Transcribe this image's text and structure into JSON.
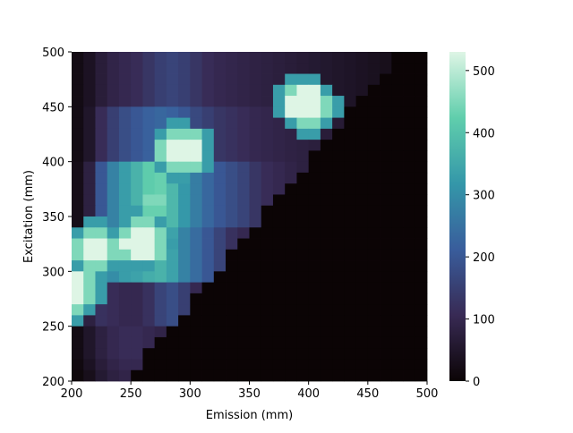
{
  "chart_data": {
    "type": "heatmap",
    "xlabel": "Emission (mm)",
    "ylabel": "Excitation (mm)",
    "xlim": [
      200,
      500
    ],
    "ylim": [
      200,
      500
    ],
    "xticks": [
      200,
      250,
      300,
      350,
      400,
      450,
      500
    ],
    "yticks": [
      200,
      250,
      300,
      350,
      400,
      450,
      500
    ],
    "x": [
      205,
      215,
      225,
      235,
      245,
      255,
      265,
      275,
      285,
      295,
      305,
      315,
      325,
      335,
      345,
      355,
      365,
      375,
      385,
      395,
      405,
      415,
      425,
      435,
      445,
      455,
      465,
      475,
      485,
      495
    ],
    "y": [
      495,
      485,
      475,
      465,
      455,
      445,
      435,
      425,
      415,
      405,
      395,
      385,
      375,
      365,
      355,
      345,
      335,
      325,
      315,
      305,
      295,
      285,
      275,
      265,
      255,
      245,
      235,
      225,
      215,
      205
    ],
    "z": [
      [
        20,
        40,
        70,
        90,
        100,
        110,
        130,
        150,
        160,
        150,
        130,
        110,
        100,
        95,
        90,
        85,
        80,
        75,
        70,
        65,
        60,
        55,
        50,
        45,
        40,
        35,
        30,
        0,
        0,
        0
      ],
      [
        20,
        40,
        70,
        90,
        100,
        110,
        130,
        150,
        160,
        150,
        130,
        110,
        100,
        95,
        90,
        85,
        80,
        75,
        70,
        65,
        60,
        55,
        50,
        45,
        40,
        35,
        30,
        0,
        0,
        0
      ],
      [
        20,
        40,
        70,
        90,
        100,
        110,
        130,
        150,
        160,
        150,
        130,
        110,
        100,
        95,
        90,
        85,
        80,
        75,
        330,
        330,
        330,
        55,
        50,
        45,
        40,
        35,
        0,
        0,
        0,
        0
      ],
      [
        20,
        40,
        70,
        90,
        100,
        110,
        130,
        150,
        160,
        150,
        130,
        110,
        100,
        95,
        90,
        85,
        80,
        330,
        450,
        530,
        530,
        330,
        50,
        45,
        40,
        0,
        0,
        0,
        0,
        0
      ],
      [
        20,
        40,
        70,
        90,
        100,
        110,
        130,
        150,
        160,
        150,
        130,
        110,
        100,
        95,
        90,
        85,
        80,
        330,
        530,
        530,
        530,
        450,
        330,
        45,
        0,
        0,
        0,
        0,
        0,
        0
      ],
      [
        20,
        50,
        110,
        150,
        180,
        200,
        220,
        230,
        220,
        200,
        170,
        150,
        130,
        120,
        110,
        100,
        95,
        330,
        530,
        530,
        530,
        450,
        330,
        0,
        0,
        0,
        0,
        0,
        0,
        0
      ],
      [
        20,
        50,
        110,
        150,
        180,
        200,
        220,
        230,
        330,
        330,
        170,
        150,
        130,
        120,
        110,
        100,
        95,
        90,
        330,
        450,
        450,
        330,
        65,
        0,
        0,
        0,
        0,
        0,
        0,
        0
      ],
      [
        20,
        50,
        110,
        150,
        180,
        200,
        220,
        330,
        450,
        450,
        450,
        330,
        130,
        120,
        110,
        100,
        95,
        90,
        85,
        330,
        330,
        70,
        0,
        0,
        0,
        0,
        0,
        0,
        0,
        0
      ],
      [
        20,
        50,
        110,
        150,
        180,
        200,
        220,
        450,
        530,
        530,
        530,
        330,
        130,
        120,
        110,
        100,
        95,
        90,
        85,
        80,
        75,
        0,
        0,
        0,
        0,
        0,
        0,
        0,
        0,
        0
      ],
      [
        20,
        50,
        110,
        150,
        180,
        200,
        220,
        450,
        530,
        530,
        530,
        330,
        130,
        120,
        110,
        100,
        95,
        90,
        85,
        80,
        0,
        0,
        0,
        0,
        0,
        0,
        0,
        0,
        0,
        0
      ],
      [
        25,
        80,
        200,
        280,
        330,
        370,
        420,
        330,
        450,
        450,
        450,
        330,
        200,
        180,
        160,
        130,
        110,
        100,
        90,
        80,
        0,
        0,
        0,
        0,
        0,
        0,
        0,
        0,
        0,
        0
      ],
      [
        25,
        80,
        200,
        280,
        330,
        370,
        420,
        430,
        330,
        330,
        270,
        230,
        200,
        180,
        160,
        130,
        110,
        100,
        90,
        0,
        0,
        0,
        0,
        0,
        0,
        0,
        0,
        0,
        0,
        0
      ],
      [
        25,
        80,
        200,
        280,
        330,
        370,
        420,
        430,
        380,
        320,
        270,
        230,
        200,
        180,
        160,
        130,
        110,
        100,
        0,
        0,
        0,
        0,
        0,
        0,
        0,
        0,
        0,
        0,
        0,
        0
      ],
      [
        25,
        80,
        200,
        280,
        330,
        370,
        450,
        450,
        380,
        320,
        270,
        230,
        200,
        180,
        160,
        130,
        110,
        0,
        0,
        0,
        0,
        0,
        0,
        0,
        0,
        0,
        0,
        0,
        0,
        0
      ],
      [
        25,
        80,
        200,
        280,
        330,
        330,
        430,
        430,
        380,
        320,
        270,
        230,
        200,
        180,
        160,
        130,
        0,
        0,
        0,
        0,
        0,
        0,
        0,
        0,
        0,
        0,
        0,
        0,
        0,
        0
      ],
      [
        25,
        330,
        330,
        280,
        330,
        450,
        450,
        330,
        380,
        320,
        270,
        230,
        200,
        180,
        160,
        130,
        0,
        0,
        0,
        0,
        0,
        0,
        0,
        0,
        0,
        0,
        0,
        0,
        0,
        0
      ],
      [
        330,
        450,
        450,
        330,
        450,
        530,
        530,
        450,
        340,
        280,
        240,
        200,
        160,
        120,
        100,
        0,
        0,
        0,
        0,
        0,
        0,
        0,
        0,
        0,
        0,
        0,
        0,
        0,
        0,
        0
      ],
      [
        450,
        530,
        530,
        450,
        530,
        530,
        530,
        450,
        330,
        280,
        240,
        200,
        160,
        120,
        0,
        0,
        0,
        0,
        0,
        0,
        0,
        0,
        0,
        0,
        0,
        0,
        0,
        0,
        0,
        0
      ],
      [
        450,
        530,
        530,
        450,
        450,
        530,
        530,
        450,
        340,
        280,
        240,
        200,
        160,
        0,
        0,
        0,
        0,
        0,
        0,
        0,
        0,
        0,
        0,
        0,
        0,
        0,
        0,
        0,
        0,
        0
      ],
      [
        330,
        450,
        450,
        330,
        330,
        330,
        330,
        370,
        340,
        280,
        240,
        200,
        160,
        0,
        0,
        0,
        0,
        0,
        0,
        0,
        0,
        0,
        0,
        0,
        0,
        0,
        0,
        0,
        0,
        0
      ],
      [
        530,
        450,
        330,
        300,
        330,
        340,
        360,
        370,
        340,
        280,
        240,
        200,
        0,
        0,
        0,
        0,
        0,
        0,
        0,
        0,
        0,
        0,
        0,
        0,
        0,
        0,
        0,
        0,
        0,
        0
      ],
      [
        530,
        450,
        330,
        110,
        100,
        100,
        120,
        160,
        180,
        150,
        100,
        0,
        0,
        0,
        0,
        0,
        0,
        0,
        0,
        0,
        0,
        0,
        0,
        0,
        0,
        0,
        0,
        0,
        0,
        0
      ],
      [
        530,
        450,
        330,
        110,
        100,
        100,
        120,
        160,
        180,
        150,
        0,
        0,
        0,
        0,
        0,
        0,
        0,
        0,
        0,
        0,
        0,
        0,
        0,
        0,
        0,
        0,
        0,
        0,
        0,
        0
      ],
      [
        450,
        330,
        120,
        110,
        100,
        100,
        120,
        160,
        180,
        150,
        0,
        0,
        0,
        0,
        0,
        0,
        0,
        0,
        0,
        0,
        0,
        0,
        0,
        0,
        0,
        0,
        0,
        0,
        0,
        0
      ],
      [
        330,
        80,
        120,
        110,
        100,
        100,
        120,
        160,
        180,
        0,
        0,
        0,
        0,
        0,
        0,
        0,
        0,
        0,
        0,
        0,
        0,
        0,
        0,
        0,
        0,
        0,
        0,
        0,
        0,
        0
      ],
      [
        20,
        50,
        80,
        100,
        110,
        110,
        100,
        90,
        0,
        0,
        0,
        0,
        0,
        0,
        0,
        0,
        0,
        0,
        0,
        0,
        0,
        0,
        0,
        0,
        0,
        0,
        0,
        0,
        0,
        0
      ],
      [
        20,
        50,
        80,
        100,
        110,
        110,
        100,
        0,
        0,
        0,
        0,
        0,
        0,
        0,
        0,
        0,
        0,
        0,
        0,
        0,
        0,
        0,
        0,
        0,
        0,
        0,
        0,
        0,
        0,
        0
      ],
      [
        20,
        50,
        80,
        100,
        110,
        110,
        0,
        0,
        0,
        0,
        0,
        0,
        0,
        0,
        0,
        0,
        0,
        0,
        0,
        0,
        0,
        0,
        0,
        0,
        0,
        0,
        0,
        0,
        0,
        0
      ],
      [
        15,
        40,
        70,
        90,
        100,
        100,
        0,
        0,
        0,
        0,
        0,
        0,
        0,
        0,
        0,
        0,
        0,
        0,
        0,
        0,
        0,
        0,
        0,
        0,
        0,
        0,
        0,
        0,
        0,
        0
      ],
      [
        10,
        30,
        60,
        80,
        90,
        0,
        0,
        0,
        0,
        0,
        0,
        0,
        0,
        0,
        0,
        0,
        0,
        0,
        0,
        0,
        0,
        0,
        0,
        0,
        0,
        0,
        0,
        0,
        0,
        0
      ]
    ],
    "colorbar": {
      "lim": [
        0,
        530
      ],
      "ticks": [
        0,
        100,
        200,
        300,
        400,
        500
      ]
    },
    "colors": [
      "#0b0405",
      "#382a54",
      "#395d9c",
      "#3497a9",
      "#60ceac",
      "#def5e5"
    ]
  }
}
